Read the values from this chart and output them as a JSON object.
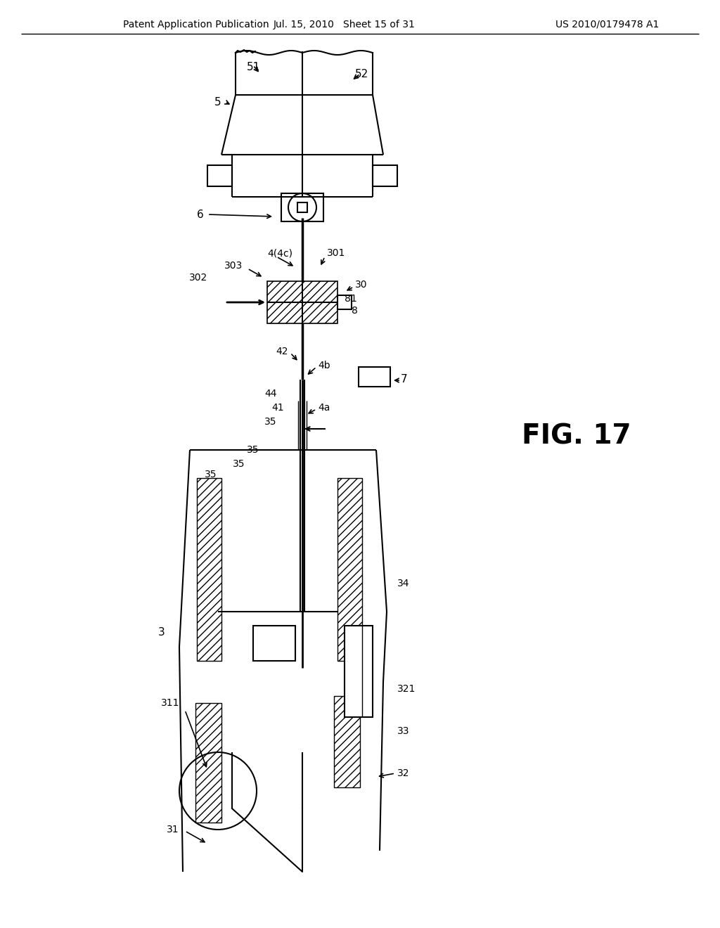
{
  "title": "",
  "header_left": "Patent Application Publication",
  "header_center": "Jul. 15, 2010   Sheet 15 of 31",
  "header_right": "US 2010/0179478 A1",
  "fig_label": "FIG. 17",
  "background_color": "#ffffff",
  "line_color": "#000000",
  "text_color": "#000000"
}
